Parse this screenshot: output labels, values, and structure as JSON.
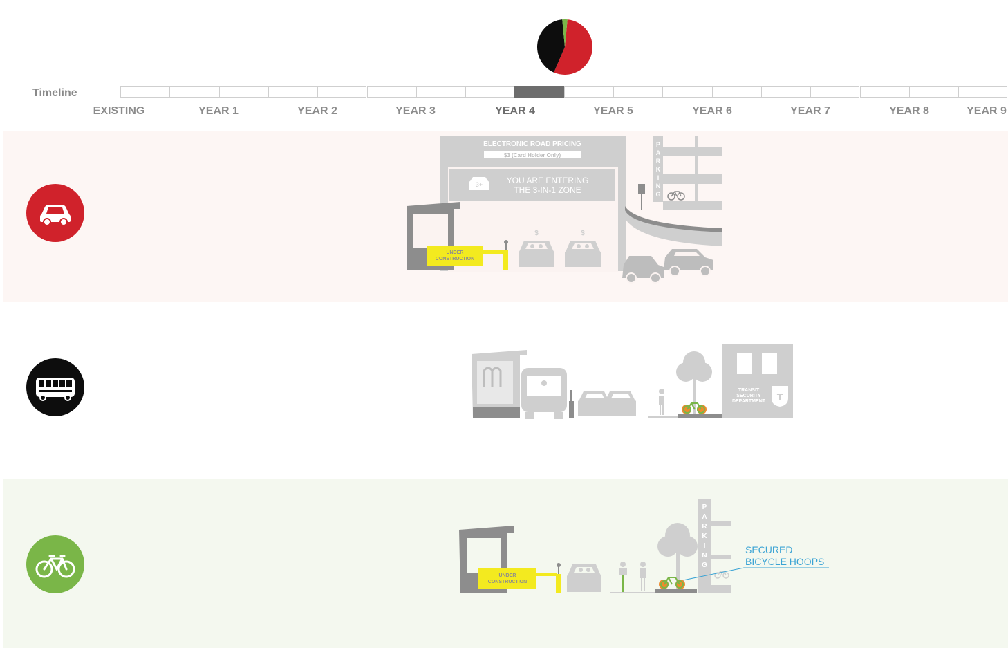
{
  "timeline": {
    "label": "Timeline",
    "years": [
      "EXISTING",
      "YEAR 1",
      "YEAR 2",
      "YEAR 3",
      "YEAR 4",
      "YEAR 5",
      "YEAR 6",
      "YEAR 7",
      "YEAR 8",
      "YEAR 9"
    ],
    "active_index": 4
  },
  "pie": {
    "colors": {
      "car": "#d0222b",
      "bus": "#0d0d0d",
      "bike": "#7ab648"
    },
    "shares": {
      "car": 0.55,
      "bus": 0.42,
      "bike": 0.03
    }
  },
  "modes": {
    "car": {
      "icon": "car-icon",
      "color": "#d0222b",
      "band_color": "#fdf6f4"
    },
    "bus": {
      "icon": "bus-icon",
      "color": "#0d0d0d",
      "band_color": "#ffffff"
    },
    "bike": {
      "icon": "bicycle-icon",
      "color": "#7ab648",
      "band_color": "#f4f8ef"
    }
  },
  "car_scene": {
    "erp_title": "ELECTRONIC ROAD PRICING",
    "erp_price": "$3 (Card Holder Only)",
    "zone_line1": "YOU ARE ENTERING",
    "zone_line2": "THE 3-IN-1 ZONE",
    "occupancy": "3+",
    "parking_letters": [
      "P",
      "A",
      "R",
      "K",
      "I",
      "N",
      "G"
    ],
    "construction_line1": "UNDER",
    "construction_line2": "CONSTRUCTION",
    "toll_symbol": "$"
  },
  "bus_scene": {
    "security_line1": "TRANSIT",
    "security_line2": "SECURITY",
    "security_line3": "DEPARTMENT",
    "security_badge": "T"
  },
  "bike_scene": {
    "construction_line1": "UNDER",
    "construction_line2": "CONSTRUCTION",
    "parking_letters": [
      "P",
      "A",
      "R",
      "K",
      "I",
      "N",
      "G"
    ],
    "callout_line1": "SECURED",
    "callout_line2": "BICYCLE HOOPS",
    "callout_color": "#3aa3d4"
  },
  "colors": {
    "gray": "#c8c8c8",
    "dark_gray": "#8d8d8d",
    "yellow": "#f3ea1f",
    "orange": "#f08a2c",
    "green": "#7ab648"
  }
}
